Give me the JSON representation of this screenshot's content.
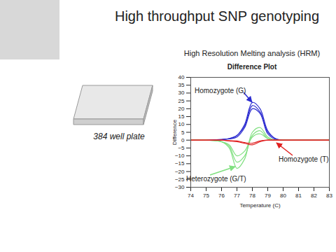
{
  "slide": {
    "title": "High throughput SNP genotyping",
    "image_caption": "384 well plate"
  },
  "chart_data": {
    "type": "line",
    "title": "Difference Plot",
    "subtitle": "High Resolution Melting analysis (HRM)",
    "x_label": "Temperature (C)",
    "y_label": "Difference",
    "x": [
      74,
      75,
      76,
      76.5,
      77,
      77.5,
      78,
      78.5,
      79,
      79.5,
      80,
      81,
      82,
      83
    ],
    "xlim": [
      74,
      83
    ],
    "xticks": [
      74,
      75,
      76,
      77,
      78,
      79,
      80,
      81,
      82,
      83
    ],
    "ylim": [
      -30,
      40
    ],
    "yticks": [
      -30,
      -25,
      -20,
      -15,
      -10,
      -5,
      0,
      5,
      10,
      15,
      20,
      25,
      30,
      35,
      40
    ],
    "grid": false,
    "series": [
      {
        "name": "Homozygote (G)",
        "color": "#2b2bd0",
        "values": [
          [
            0,
            0,
            0.5,
            1,
            3,
            10,
            24,
            20,
            6,
            1,
            0,
            0,
            0,
            0
          ],
          [
            0,
            0,
            0.3,
            1,
            3,
            9,
            22,
            18,
            5,
            1,
            0,
            0,
            0,
            0
          ],
          [
            0,
            0,
            0.3,
            0.8,
            2,
            8,
            20,
            17,
            4,
            0.5,
            0,
            0,
            0,
            0
          ]
        ]
      },
      {
        "name": "Heterozygote (G/T)",
        "color": "#80e080",
        "values": [
          [
            0,
            0,
            -1,
            -5,
            -18,
            -12,
            5,
            8,
            2,
            0,
            0,
            0,
            0,
            0
          ],
          [
            0,
            0,
            -1,
            -4,
            -14,
            -10,
            3,
            6,
            1,
            0,
            0,
            0,
            0,
            0
          ],
          [
            0,
            0,
            -1,
            -3,
            -10,
            -7,
            2,
            4,
            1,
            0,
            0,
            0,
            0,
            0
          ]
        ]
      },
      {
        "name": "Homozygote (T)",
        "color": "#e02020",
        "values": [
          [
            0,
            0,
            0,
            -0.5,
            -1,
            -2,
            -3,
            -1,
            0,
            0,
            0,
            0,
            0,
            0
          ],
          [
            0,
            0,
            0,
            -0.3,
            -0.5,
            -1.5,
            -2,
            -0.5,
            0,
            0,
            0,
            0,
            0,
            0
          ]
        ]
      }
    ]
  }
}
